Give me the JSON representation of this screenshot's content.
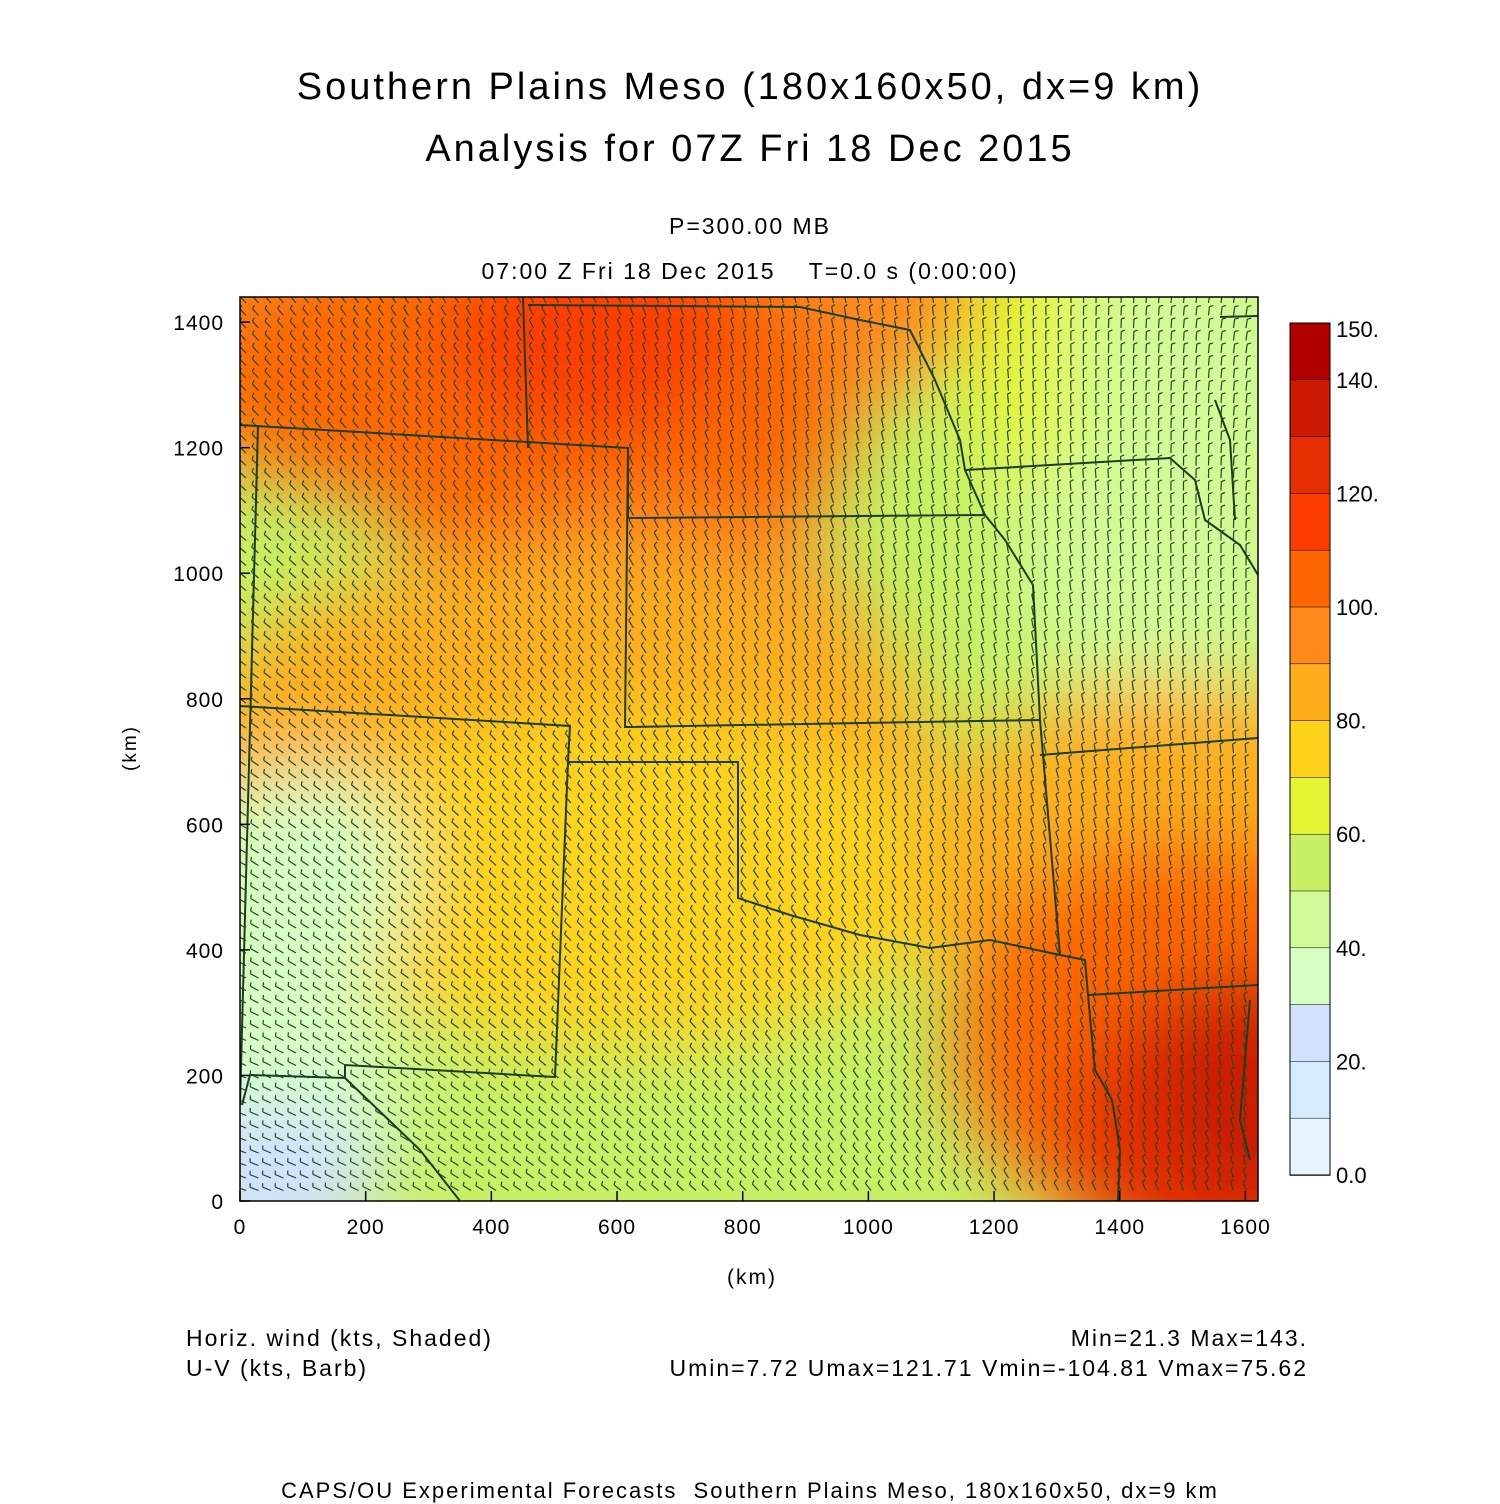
{
  "title_line1": "Southern Plains Meso (180x160x50, dx=9 km)",
  "title_line2": "Analysis for 07Z Fri 18 Dec 2015",
  "level_label": "P=300.00 MB",
  "time_label": "07:00 Z Fri 18 Dec 2015    T=0.0 s (0:00:00)",
  "x_axis": {
    "label": "(km)",
    "ticks": [
      "0",
      "200",
      "400",
      "600",
      "800",
      "1000",
      "1200",
      "1400",
      "1600"
    ],
    "range": [
      0,
      1620
    ]
  },
  "y_axis": {
    "label": "(km)",
    "ticks": [
      "0",
      "200",
      "400",
      "600",
      "800",
      "1000",
      "1200",
      "1400"
    ],
    "range": [
      0,
      1440
    ]
  },
  "colorbar": {
    "labels": [
      "150.",
      "140.",
      "120.",
      "100.",
      "80.",
      "60.",
      "40.",
      "20.",
      "0.0"
    ],
    "colors": [
      "#b20000",
      "#cc1a00",
      "#e62e00",
      "#ff3c00",
      "#ff6600",
      "#ff8a1a",
      "#ffad1a",
      "#ffd21a",
      "#e6f531",
      "#c8f065",
      "#d2fa96",
      "#d7ffc3",
      "#d2e1ff",
      "#d7ebff",
      "#e6f5ff"
    ]
  },
  "footer": {
    "field_label": "Horiz. wind (kts, Shaded)",
    "barb_label": "U-V (kts, Barb)",
    "minmax": "Min=21.3 Max=143.",
    "uv_stats": "Umin=7.72 Umax=121.71 Vmin=-104.81 Vmax=75.62",
    "credit": "CAPS/OU Experimental Forecasts  Southern Plains Meso, 180x160x50, dx=9 km"
  }
}
